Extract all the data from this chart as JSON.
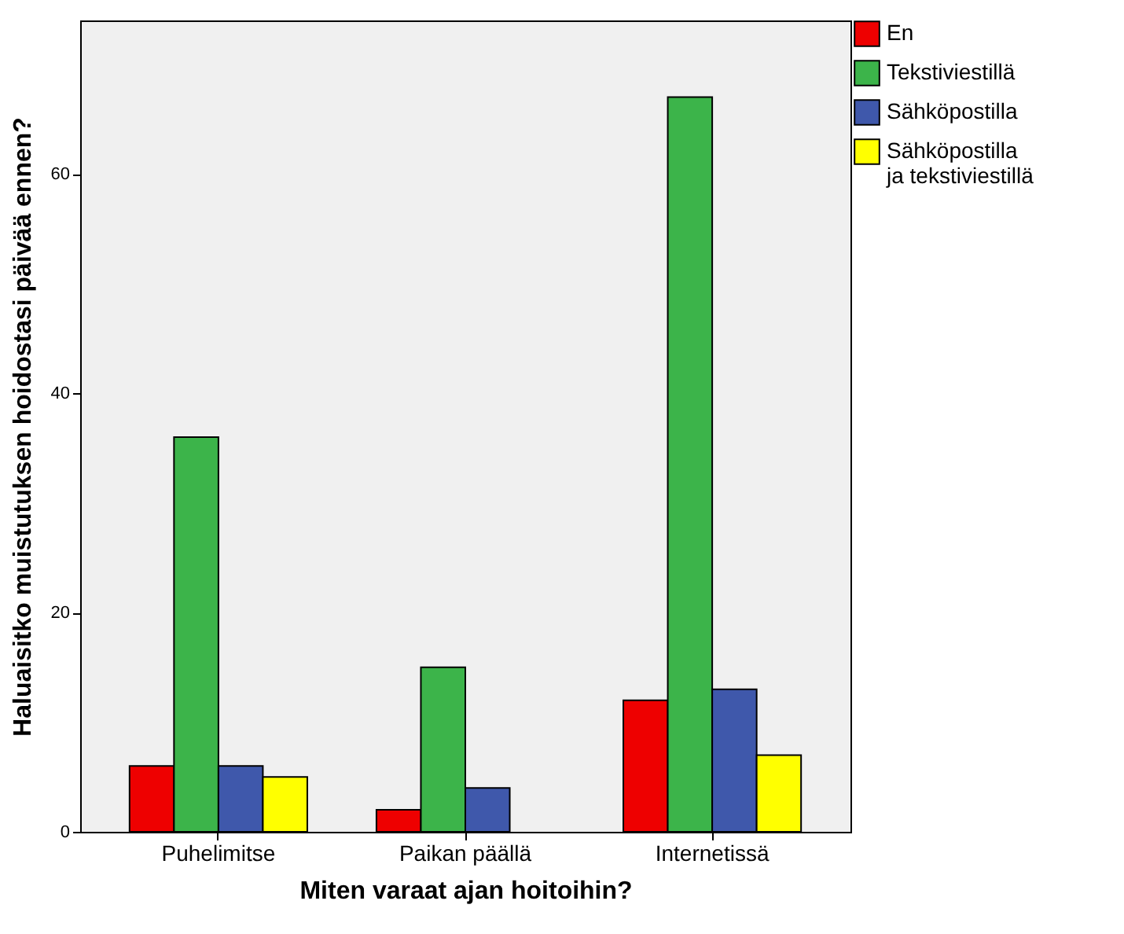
{
  "chart_data": {
    "type": "bar",
    "xlabel": "Miten varaat ajan hoitoihin?",
    "ylabel": "Haluaisitko muistutuksen hoidostasi päivää ennen?",
    "categories": [
      "Puhelimitse",
      "Paikan päällä",
      "Internetissä"
    ],
    "series": [
      {
        "name": "En",
        "color": "#ee0000",
        "values": [
          6,
          2,
          12
        ]
      },
      {
        "name": "Tekstiviestillä",
        "color": "#3cb44a",
        "values": [
          36,
          15,
          67
        ]
      },
      {
        "name": "Sähköpostilla",
        "color": "#3f58ab",
        "values": [
          6,
          4,
          13
        ]
      },
      {
        "name": "Sähköpostilla ja tekstiviestillä",
        "color": "#ffff00",
        "values": [
          5,
          null,
          7
        ]
      }
    ],
    "ylim": [
      0,
      74
    ],
    "yticks": [
      0,
      20,
      40,
      60
    ],
    "grid": false,
    "legend": "right"
  }
}
